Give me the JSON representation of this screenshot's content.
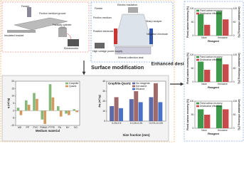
{
  "diagram": {
    "left_labels": [
      "Feeder",
      "Friction medium groove",
      "Faraday cylinder",
      "Insulated bracket",
      "Electrometer"
    ],
    "middle_labels": [
      "Feeder",
      "Electric insulation",
      "Friction medium",
      "Sharp scraper",
      "Positive electrode",
      "Negative electrode",
      "High voltage power supply",
      "Mineral collection tank"
    ],
    "surface_modification": "Surface modification",
    "enhanced_desilication": "Enhanced desilication"
  },
  "chart_data": [
    {
      "type": "bar",
      "xlabel": "Medium material",
      "ylabel": "q (nC/g)",
      "categories": [
        "MS",
        "PP",
        "PVC",
        "PMMA",
        "PTFE",
        "PA",
        "NY",
        "OC"
      ],
      "series": [
        {
          "name": "Graphite",
          "color": "#86b87a",
          "values": [
            2,
            7,
            12,
            -6,
            18,
            3,
            -2,
            1
          ]
        },
        {
          "name": "Quartz",
          "color": "#d29a5e",
          "values": [
            -3,
            4,
            8,
            -9,
            9,
            -4,
            -3,
            -1
          ]
        }
      ],
      "ylim": [
        -10,
        20
      ],
      "yticks": [
        -10,
        -5,
        0,
        5,
        10,
        15,
        20
      ]
    },
    {
      "type": "bar",
      "title": "Graphite-Quartz",
      "xlabel": "Size fraction (mm)",
      "ylabel": "Δq (nC/g)",
      "categories": [
        "0.25-0.5",
        "0.125-0.25",
        "0.074-0.125"
      ],
      "series": [
        {
          "name": "No reagents",
          "color": "#5d6aa8",
          "values": [
            15,
            22,
            24
          ]
        },
        {
          "name": "Kerosene",
          "color": "#a06a6a",
          "values": [
            24,
            30,
            38
          ]
        },
        {
          "name": "Ethanol",
          "color": "#4a72c8",
          "values": [
            13,
            19,
            19
          ]
        }
      ],
      "ylim": [
        0,
        40
      ],
      "yticks": [
        0,
        10,
        20,
        30,
        40
      ]
    },
    {
      "type": "bar",
      "xlabel": "Reagent",
      "ylabel": "Fixed carbon recovery (%)",
      "y2label": "Desilication efficiency (%)",
      "categories": [
        "None",
        "Kerosene"
      ],
      "series": [
        {
          "name": "Fixed carbon recovery",
          "color": "#3f9a4e",
          "values": [
            80,
            90
          ]
        },
        {
          "name": "Desilication efficiency",
          "color": "#c84a4a",
          "values": [
            40,
            60
          ],
          "axis": "y2"
        }
      ],
      "ylim": [
        0,
        100
      ],
      "yticks": [
        0,
        50,
        100
      ],
      "y2lim": [
        0,
        100
      ],
      "y2ticks": [
        0,
        50,
        100
      ]
    },
    {
      "type": "bar",
      "xlabel": "Reagent",
      "ylabel": "Fixed carbon recovery (%)",
      "y2label": "Desilication efficiency (%)",
      "categories": [
        "None",
        "Kerosene"
      ],
      "series": [
        {
          "name": "Fixed carbon recovery",
          "color": "#3f9a4e",
          "values": [
            75,
            88
          ]
        },
        {
          "name": "Desilication efficiency",
          "color": "#c84a4a",
          "values": [
            45,
            65
          ],
          "axis": "y2"
        }
      ],
      "ylim": [
        0,
        100
      ],
      "yticks": [
        0,
        50,
        100
      ],
      "y2lim": [
        0,
        100
      ],
      "y2ticks": [
        0,
        50,
        100
      ]
    },
    {
      "type": "bar",
      "xlabel": "Reagent",
      "ylabel": "Fixed carbon recovery (%)",
      "y2label": "Desilication efficiency (%)",
      "categories": [
        "None",
        "Kerosene"
      ],
      "series": [
        {
          "name": "Fixed carbon recovery",
          "color": "#3f9a4e",
          "values": [
            70,
            85
          ]
        },
        {
          "name": "Desilication efficiency",
          "color": "#c84a4a",
          "values": [
            50,
            70
          ],
          "axis": "y2"
        }
      ],
      "ylim": [
        0,
        100
      ],
      "yticks": [
        0,
        50,
        100
      ],
      "y2lim": [
        0,
        100
      ],
      "y2ticks": [
        0,
        50,
        100
      ]
    }
  ]
}
